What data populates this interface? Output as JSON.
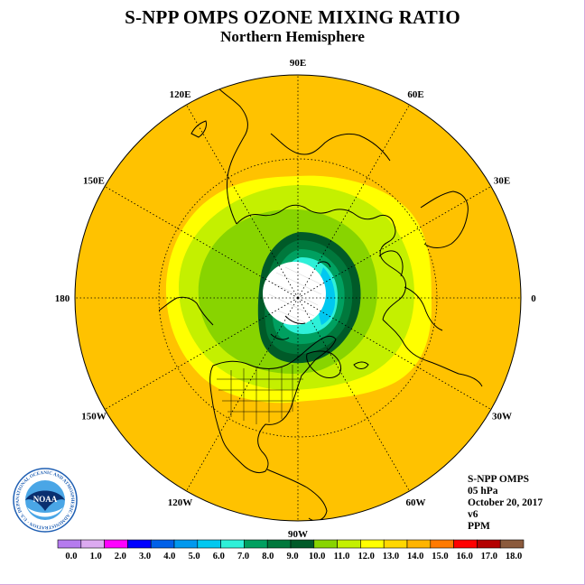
{
  "title": "S-NPP OMPS OZONE MIXING RATIO",
  "subtitle": "Northern Hemisphere",
  "longitude_labels": [
    "90E",
    "60E",
    "30E",
    "0",
    "30W",
    "60W",
    "90W",
    "120W",
    "150W",
    "180",
    "150E",
    "120E"
  ],
  "info": {
    "instrument": "S-NPP OMPS",
    "level": "05 hPa",
    "date": "October 20, 2017",
    "version": "v6",
    "units": "PPM"
  },
  "logo": {
    "text": "NOAA",
    "ring_text": "NATIONAL OCEANIC AND ATMOSPHERIC ADMINISTRATION · U.S. DEPARTMENT OF COMMERCE"
  },
  "colorbar": {
    "ticks": [
      "0.0",
      "1.0",
      "2.0",
      "3.0",
      "4.0",
      "5.0",
      "6.0",
      "7.0",
      "8.0",
      "9.0",
      "10.0",
      "11.0",
      "12.0",
      "13.0",
      "14.0",
      "15.0",
      "16.0",
      "17.0",
      "18.0"
    ],
    "colors": [
      "#b57bee",
      "#dcaaf0",
      "#ff00ff",
      "#0000ff",
      "#0060e8",
      "#0098ee",
      "#00c8f0",
      "#2ef0d8",
      "#00a060",
      "#00783c",
      "#005a28",
      "#88d400",
      "#c4f000",
      "#ffff00",
      "#ffd700",
      "#ffb400",
      "#ff7a00",
      "#ff0000",
      "#b40000",
      "#8b5a3c"
    ]
  },
  "map_data": {
    "projection": "north polar stereographic",
    "ozone_ppm_bands_pole_to_edge": [
      "<7 (no data)",
      "7-8",
      "8-9",
      "9-10",
      "10-11",
      "11-12",
      "12-13",
      "13-14"
    ]
  },
  "colors": {
    "outer_field": "#ffc200",
    "border": "#d9a6d9"
  }
}
